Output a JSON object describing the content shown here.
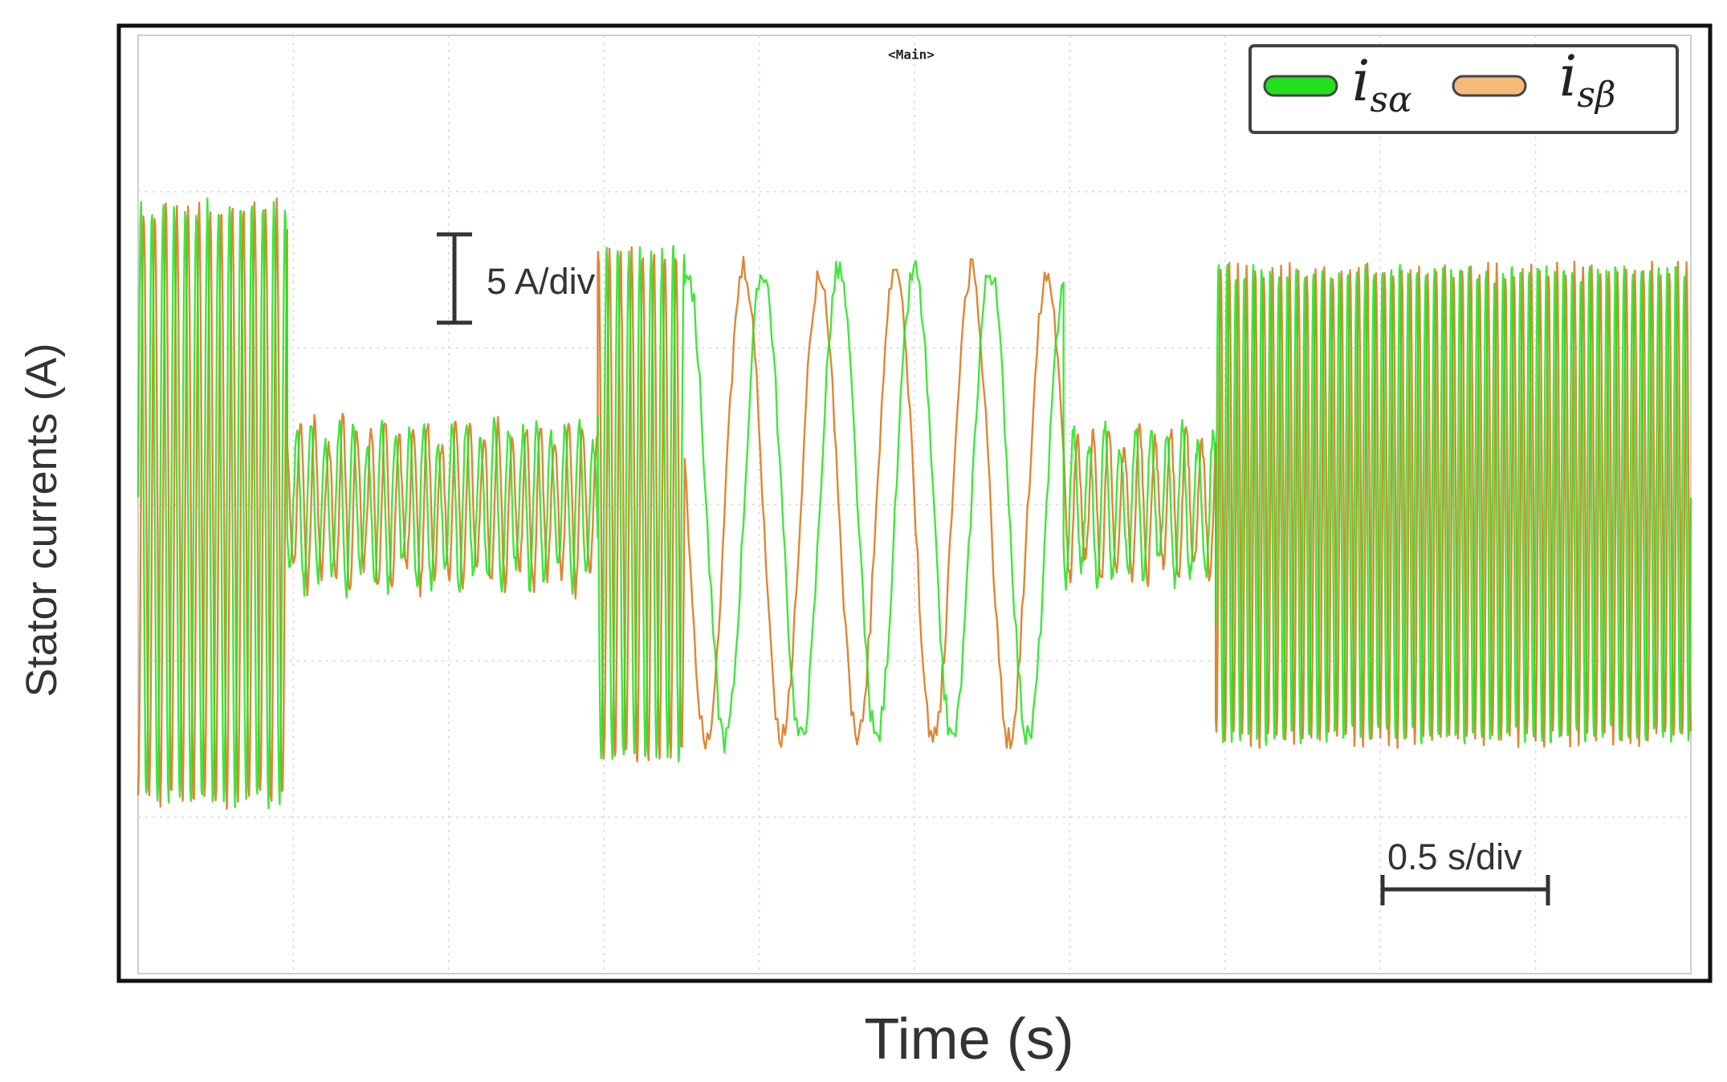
{
  "chart_data": {
    "type": "line",
    "title": "",
    "panel_tag": "<Main>",
    "xlabel": "Time (s)",
    "ylabel": "Stator currents (A)",
    "y_scale_label": "5 A/div",
    "x_scale_label": "0.5 s/div",
    "x_units_per_div": 0.5,
    "y_units_per_div": 5,
    "grid": true,
    "legend_position": "top-right",
    "series": [
      {
        "name": "i_sα",
        "name_main": "i",
        "name_sub": "sα",
        "color": "#22e01c",
        "segments": [
          {
            "t_start": 0.0,
            "t_end": 0.48,
            "amplitude": 9.5,
            "frequency_hz": 28,
            "phase_deg": 0
          },
          {
            "t_start": 0.48,
            "t_end": 1.48,
            "amplitude": 2.5,
            "frequency_hz": 22,
            "phase_deg": 0
          },
          {
            "t_start": 1.48,
            "t_end": 1.76,
            "amplitude": 8.0,
            "frequency_hz": 28,
            "phase_deg": 0
          },
          {
            "t_start": 1.76,
            "t_end": 2.98,
            "amplitude": 7.5,
            "frequency_hz": 4.1,
            "phase_deg": 0
          },
          {
            "t_start": 2.98,
            "t_end": 3.47,
            "amplitude": 2.3,
            "frequency_hz": 20,
            "phase_deg": 0
          },
          {
            "t_start": 3.47,
            "t_end": 5.0,
            "amplitude": 7.5,
            "frequency_hz": 36,
            "phase_deg": 0
          }
        ]
      },
      {
        "name": "i_sβ",
        "name_main": "i",
        "name_sub": "sβ",
        "color": "#d97a1f",
        "segments": [
          {
            "t_start": 0.0,
            "t_end": 0.48,
            "amplitude": 9.5,
            "frequency_hz": 28,
            "phase_deg": -90
          },
          {
            "t_start": 0.48,
            "t_end": 1.48,
            "amplitude": 2.5,
            "frequency_hz": 22,
            "phase_deg": -90
          },
          {
            "t_start": 1.48,
            "t_end": 1.76,
            "amplitude": 8.0,
            "frequency_hz": 28,
            "phase_deg": -90
          },
          {
            "t_start": 1.76,
            "t_end": 2.98,
            "amplitude": 7.5,
            "frequency_hz": 4.1,
            "phase_deg": 90
          },
          {
            "t_start": 2.98,
            "t_end": 3.47,
            "amplitude": 2.3,
            "frequency_hz": 20,
            "phase_deg": -90
          },
          {
            "t_start": 3.47,
            "t_end": 5.0,
            "amplitude": 7.5,
            "frequency_hz": 36,
            "phase_deg": -90
          }
        ]
      }
    ],
    "xlim": [
      0,
      5.0
    ],
    "ylim": [
      -15,
      15
    ]
  },
  "legend_colors": {
    "frame": "#333333",
    "background": "#ffffff"
  }
}
